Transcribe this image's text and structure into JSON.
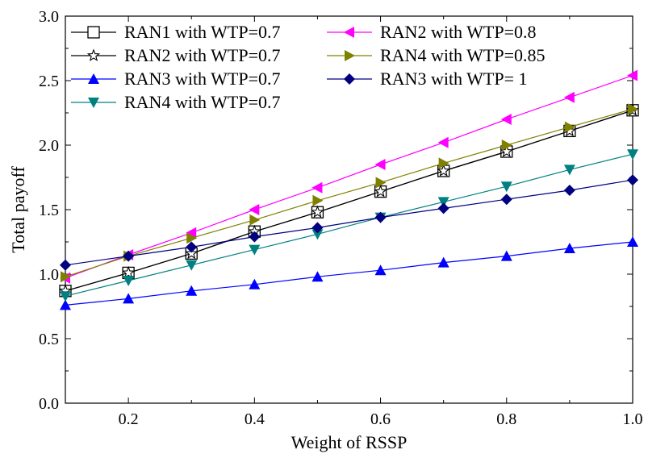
{
  "chart_data": {
    "type": "line",
    "xlabel": "Weight of RSSP",
    "ylabel": "Total payoff",
    "xlim": [
      0.1,
      1.0
    ],
    "ylim": [
      0.0,
      3.0
    ],
    "x_ticks": [
      "0.2",
      "0.4",
      "0.6",
      "0.8",
      "1.0"
    ],
    "x_tick_values": [
      0.2,
      0.4,
      0.6,
      0.8,
      1.0
    ],
    "y_ticks": [
      "0.0",
      "0.5",
      "1.0",
      "1.5",
      "2.0",
      "2.5",
      "3.0"
    ],
    "y_tick_values": [
      0.0,
      0.5,
      1.0,
      1.5,
      2.0,
      2.5,
      3.0
    ],
    "grid": false,
    "legend_placement": "top-left, two columns",
    "x": [
      0.1,
      0.2,
      0.3,
      0.4,
      0.5,
      0.6,
      0.7,
      0.8,
      0.9,
      1.0
    ],
    "series": [
      {
        "name": "RAN1 with WTP=0.7",
        "color": "#000000",
        "marker": "square-open",
        "values": [
          0.87,
          1.01,
          1.16,
          1.33,
          1.48,
          1.64,
          1.8,
          1.95,
          2.11,
          2.27
        ]
      },
      {
        "name": "RAN2 with WTP=0.7",
        "color": "#000000",
        "marker": "star-open",
        "values": [
          0.87,
          1.01,
          1.16,
          1.33,
          1.48,
          1.64,
          1.8,
          1.95,
          2.11,
          2.27
        ]
      },
      {
        "name": "RAN3 with WTP=0.7",
        "color": "#0000ff",
        "marker": "triangle-up",
        "values": [
          0.76,
          0.81,
          0.87,
          0.92,
          0.98,
          1.03,
          1.09,
          1.14,
          1.2,
          1.25
        ]
      },
      {
        "name": "RAN4 with WTP=0.7",
        "color": "#008080",
        "marker": "triangle-down",
        "values": [
          0.83,
          0.95,
          1.07,
          1.19,
          1.31,
          1.44,
          1.56,
          1.68,
          1.81,
          1.93
        ]
      },
      {
        "name": "RAN2 with WTP=0.8",
        "color": "#ff00ff",
        "marker": "triangle-left",
        "values": [
          0.97,
          1.15,
          1.32,
          1.5,
          1.67,
          1.85,
          2.02,
          2.2,
          2.37,
          2.54
        ]
      },
      {
        "name": "RAN4 with WTP=0.85",
        "color": "#808000",
        "marker": "triangle-right",
        "values": [
          0.98,
          1.14,
          1.28,
          1.42,
          1.57,
          1.71,
          1.86,
          2.0,
          2.14,
          2.28
        ]
      },
      {
        "name": "RAN3 with WTP= 1",
        "color": "#000080",
        "marker": "diamond",
        "values": [
          1.07,
          1.14,
          1.21,
          1.29,
          1.36,
          1.44,
          1.51,
          1.58,
          1.65,
          1.73
        ]
      }
    ]
  }
}
